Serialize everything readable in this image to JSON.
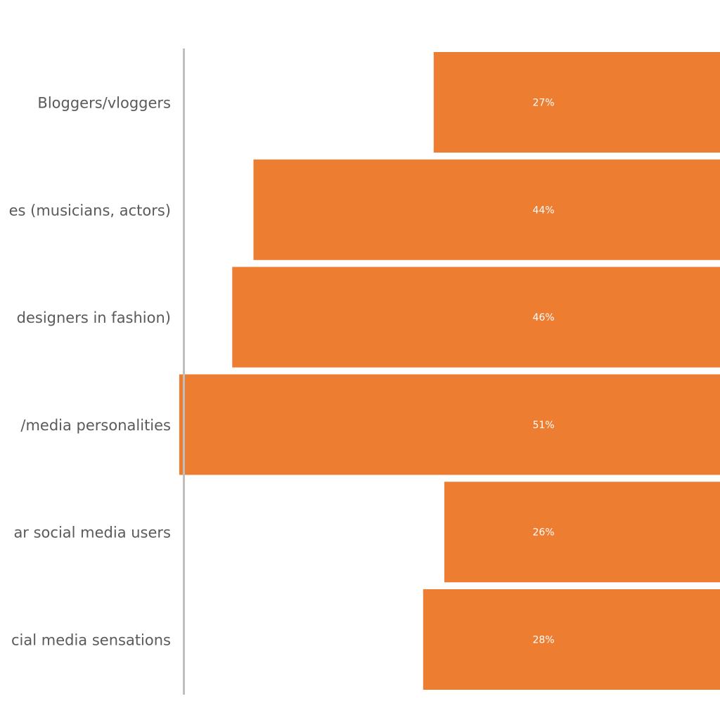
{
  "chart_data": {
    "type": "bar",
    "orientation": "horizontal",
    "categories": [
      "Bloggers/vloggers",
      "es (musicians, actors)",
      "designers in fashion)",
      "/media personalities",
      "ar social media users",
      "cial media sensations"
    ],
    "values": [
      27,
      44,
      46,
      51,
      26,
      28
    ],
    "value_labels": [
      "27%",
      "44%",
      "46%",
      "51%",
      "26%",
      "28%"
    ],
    "unit": "%",
    "title": "",
    "xlabel": "",
    "ylabel": "",
    "grid": false,
    "legend": "none",
    "bar_color": "#ED7D31",
    "axis_color": "#BFBFBF",
    "label_color": "#5A5A5A",
    "value_label_color": "#FFFFFF"
  }
}
